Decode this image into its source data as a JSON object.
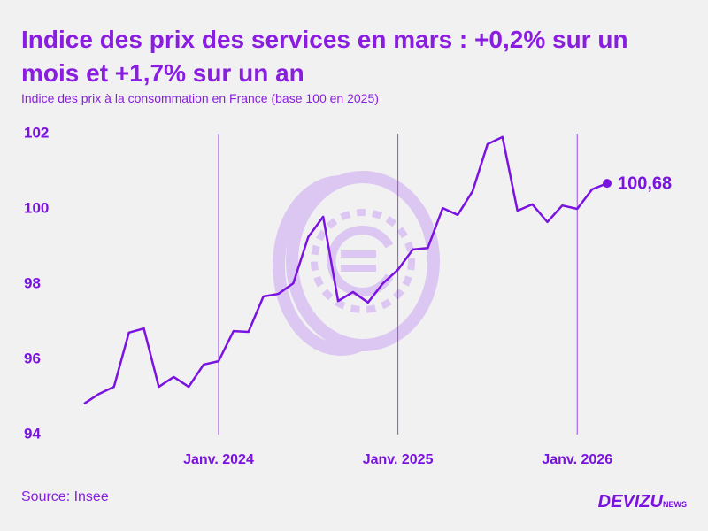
{
  "chart_data": {
    "type": "line",
    "title": "Indice des prix des services en mars : +0,2% sur un mois et +1,7% sur un an",
    "subtitle": "Indice des prix à la consommation en France (base 100 en 2025)",
    "categories": [
      null,
      null,
      null,
      null,
      null,
      null,
      null,
      null,
      null,
      "Janv. 2024",
      null,
      null,
      null,
      null,
      null,
      null,
      null,
      null,
      null,
      null,
      null,
      "Janv. 2025",
      null,
      null,
      null,
      null,
      null,
      null,
      null,
      null,
      null,
      null,
      null,
      "Janv. 2026",
      null,
      null
    ],
    "values": [
      94.82,
      95.08,
      95.27,
      96.71,
      96.82,
      95.27,
      95.53,
      95.27,
      95.86,
      95.95,
      96.75,
      96.73,
      97.67,
      97.74,
      98.02,
      99.25,
      99.79,
      97.55,
      97.79,
      97.51,
      98.02,
      98.38,
      98.92,
      98.96,
      100.02,
      99.84,
      100.47,
      101.72,
      101.91,
      99.95,
      100.12,
      99.65,
      100.09,
      100.0,
      100.52,
      100.68
    ],
    "value_labels": [
      null,
      null,
      null,
      null,
      null,
      null,
      null,
      null,
      null,
      null,
      null,
      null,
      null,
      null,
      null,
      null,
      null,
      null,
      null,
      null,
      null,
      null,
      null,
      null,
      null,
      null,
      null,
      null,
      null,
      null,
      null,
      null,
      null,
      null,
      null,
      "100,68"
    ],
    "color": "#7a12e0",
    "ylim": [
      94,
      102
    ],
    "yticks": [
      94,
      96,
      98,
      100,
      102
    ],
    "source": "Source: Insee"
  },
  "logo": {
    "brand": "DEVIZU",
    "suffix": "NEWS"
  }
}
